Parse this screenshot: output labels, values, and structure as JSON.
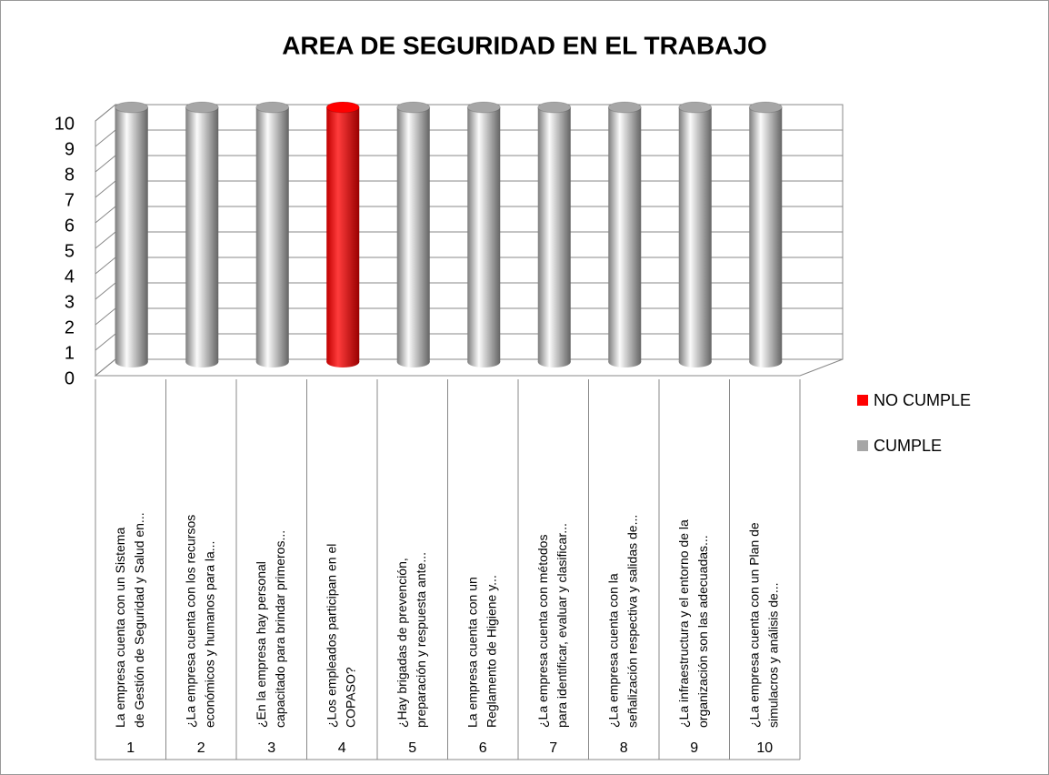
{
  "chart_data": {
    "type": "bar3d_cylinder_stacked",
    "title": "AREA DE SEGURIDAD EN EL TRABAJO",
    "categories": [
      [
        "La empresa cuenta con un Sistema",
        "de Gestión de Seguridad y Salud en..."
      ],
      [
        "¿La empresa cuenta con los recursos",
        "económicos y humanos para la..."
      ],
      [
        "¿En la empresa hay personal",
        "capacitado para brindar primeros..."
      ],
      [
        "¿Los empleados participan en el",
        "COPASO?"
      ],
      [
        "¿Hay brigadas de prevención,",
        "preparación y respuesta ante..."
      ],
      [
        "La empresa cuenta con un",
        "Reglamento de Higiene y..."
      ],
      [
        "¿La empresa cuenta con métodos",
        "para identificar, evaluar y clasificar..."
      ],
      [
        "¿La empresa cuenta con la",
        "señalización respectiva y salidas de..."
      ],
      [
        "¿La infraestructura y el entorno de la",
        "organización son las adecuadas..."
      ],
      [
        "¿La empresa cuenta con un Plan de",
        "simulacros y análisis de..."
      ]
    ],
    "category_numbers": [
      "1",
      "2",
      "3",
      "4",
      "5",
      "6",
      "7",
      "8",
      "9",
      "10"
    ],
    "series": [
      {
        "name": "NO CUMPLE",
        "color": "#ff0000",
        "values": [
          0,
          0,
          0,
          10,
          0,
          0,
          0,
          0,
          0,
          0
        ]
      },
      {
        "name": "CUMPLE",
        "color": "#a6a6a6",
        "values": [
          10,
          10,
          10,
          0,
          10,
          10,
          10,
          10,
          10,
          10
        ]
      }
    ],
    "ylim": [
      0,
      10
    ],
    "yticks": [
      0,
      1,
      2,
      3,
      4,
      5,
      6,
      7,
      8,
      9,
      10
    ],
    "grid": true,
    "legend": "right"
  }
}
